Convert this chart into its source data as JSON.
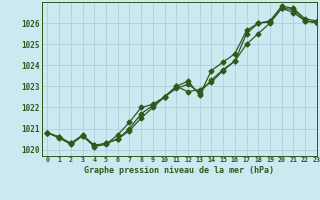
{
  "title": "Graphe pression niveau de la mer (hPa)",
  "background_color": "#cce8f0",
  "grid_color": "#aacfdc",
  "line_color": "#2d5a1b",
  "xlim": [
    -0.5,
    23
  ],
  "ylim": [
    1019.7,
    1027.0
  ],
  "yticks": [
    1020,
    1021,
    1022,
    1023,
    1024,
    1025,
    1026
  ],
  "xtick_labels": [
    "0",
    "1",
    "2",
    "3",
    "4",
    "5",
    "6",
    "7",
    "8",
    "9",
    "10",
    "11",
    "12",
    "13",
    "14",
    "15",
    "16",
    "17",
    "18",
    "19",
    "20",
    "21",
    "22",
    "23"
  ],
  "series1_x": [
    0,
    1,
    2,
    3,
    4,
    5,
    6,
    7,
    8,
    9,
    10,
    11,
    12,
    13,
    14,
    15,
    16,
    17,
    18,
    19,
    20,
    21,
    22,
    23
  ],
  "series1_y": [
    1020.8,
    1020.6,
    1020.3,
    1020.7,
    1020.2,
    1020.3,
    1020.5,
    1020.9,
    1021.5,
    1022.0,
    1022.5,
    1023.0,
    1022.75,
    1022.85,
    1023.2,
    1023.75,
    1024.2,
    1025.5,
    1026.0,
    1026.05,
    1026.7,
    1026.65,
    1026.1,
    1026.05
  ],
  "series2_x": [
    0,
    1,
    2,
    3,
    4,
    5,
    6,
    7,
    8,
    9,
    10,
    11,
    12,
    13,
    14,
    15,
    16,
    17,
    18,
    19,
    20,
    21,
    22,
    23
  ],
  "series2_y": [
    1020.8,
    1020.55,
    1020.25,
    1020.65,
    1020.15,
    1020.25,
    1020.7,
    1021.3,
    1022.0,
    1022.15,
    1022.5,
    1023.0,
    1023.25,
    1022.6,
    1023.75,
    1024.15,
    1024.55,
    1025.65,
    1026.0,
    1026.1,
    1026.8,
    1026.7,
    1026.2,
    1026.1
  ],
  "series3_x": [
    0,
    1,
    2,
    3,
    4,
    5,
    6,
    7,
    8,
    9,
    10,
    11,
    12,
    13,
    14,
    15,
    16,
    17,
    18,
    19,
    20,
    21,
    22,
    23
  ],
  "series3_y": [
    1020.8,
    1020.6,
    1020.3,
    1020.65,
    1020.2,
    1020.3,
    1020.5,
    1021.0,
    1021.7,
    1022.1,
    1022.5,
    1022.9,
    1023.1,
    1022.7,
    1023.3,
    1023.8,
    1024.2,
    1025.0,
    1025.5,
    1026.0,
    1026.7,
    1026.5,
    1026.1,
    1026.0
  ],
  "marker": "D",
  "markersize": 2.5,
  "linewidth": 0.9
}
